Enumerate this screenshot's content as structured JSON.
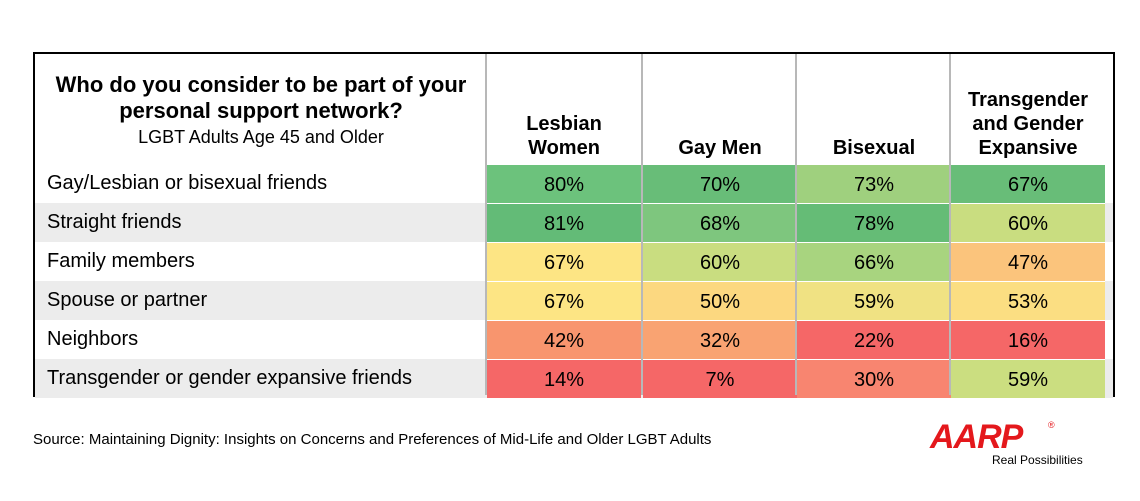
{
  "chart_data": {
    "type": "table",
    "title": "Who do you consider to be part of your personal support network?",
    "subtitle": "LGBT Adults Age 45 and Older",
    "columns": [
      "Lesbian Women",
      "Gay Men",
      "Bisexual",
      "Transgender and Gender Expansive"
    ],
    "column_lines": [
      [
        "Lesbian",
        "Women"
      ],
      [
        "Gay Men"
      ],
      [
        "Bisexual"
      ],
      [
        "Transgender",
        "and Gender",
        "Expansive"
      ]
    ],
    "rows": [
      {
        "label": "Gay/Lesbian or bisexual friends",
        "values": [
          80,
          70,
          73,
          67
        ],
        "display": [
          "80%",
          "70%",
          "73%",
          "67%"
        ]
      },
      {
        "label": "Straight friends",
        "values": [
          81,
          68,
          78,
          60
        ],
        "display": [
          "81%",
          "68%",
          "78%",
          "60%"
        ]
      },
      {
        "label": "Family members",
        "values": [
          67,
          60,
          66,
          47
        ],
        "display": [
          "67%",
          "60%",
          "66%",
          "47%"
        ]
      },
      {
        "label": "Spouse or partner",
        "values": [
          67,
          50,
          59,
          53
        ],
        "display": [
          "67%",
          "50%",
          "59%",
          "53%"
        ]
      },
      {
        "label": "Neighbors",
        "values": [
          42,
          32,
          22,
          16
        ],
        "display": [
          "42%",
          "32%",
          "22%",
          "16%"
        ]
      },
      {
        "label": "Transgender or gender expansive friends",
        "values": [
          14,
          7,
          30,
          59
        ],
        "display": [
          "14%",
          "7%",
          "30%",
          "59%"
        ]
      }
    ],
    "cell_colors": [
      [
        "#6cc27c",
        "#68bd78",
        "#9fd07e",
        "#68bd78"
      ],
      [
        "#63bb77",
        "#7ec67e",
        "#65bc76",
        "#c9dd80"
      ],
      [
        "#fde584",
        "#c9dd80",
        "#a8d47f",
        "#fbc47c"
      ],
      [
        "#fde584",
        "#fcd880",
        "#f0e283",
        "#fbde82"
      ],
      [
        "#f8956e",
        "#f9a372",
        "#f56767",
        "#f56767"
      ],
      [
        "#f56767",
        "#f56767",
        "#f88570",
        "#cbde80"
      ]
    ],
    "row_shading": [
      "#ffffff",
      "#ececec"
    ]
  },
  "footer": {
    "source": "Source: Maintaining Dignity: Insights on Concerns and Preferences of Mid-Life and Older LGBT Adults"
  },
  "logo": {
    "name": "AARP",
    "tagline": "Real Possibilities",
    "mark": "®",
    "color": "#e4181c"
  }
}
